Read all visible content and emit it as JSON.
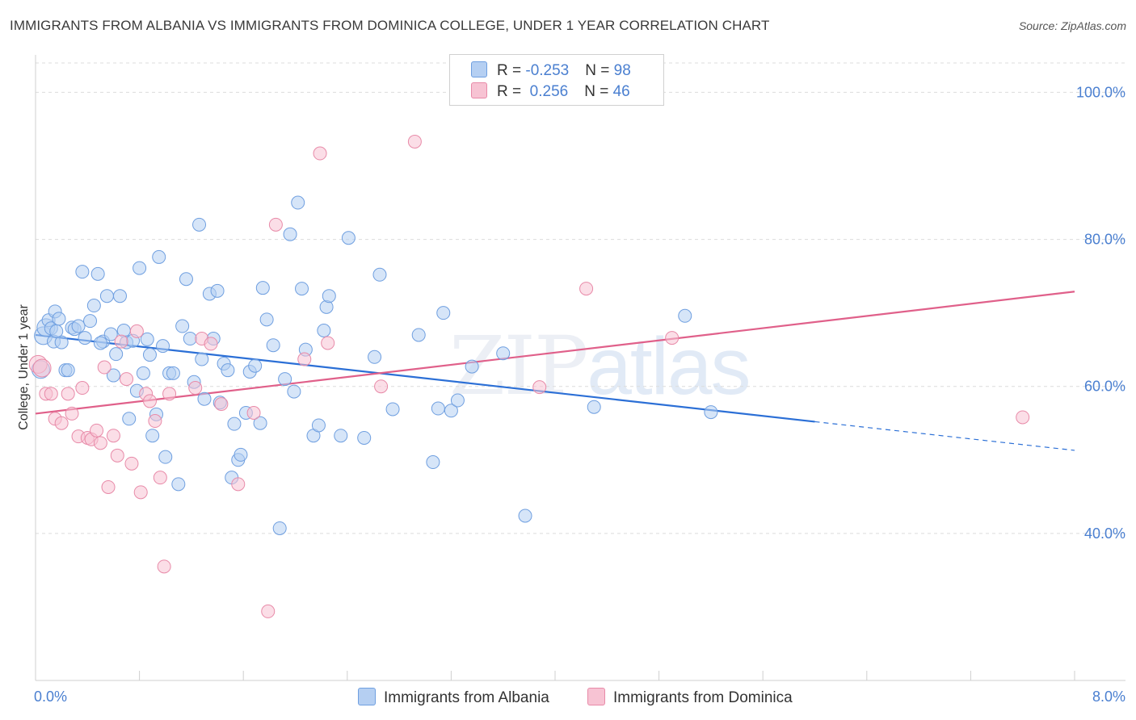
{
  "title": "IMMIGRANTS FROM ALBANIA VS IMMIGRANTS FROM DOMINICA COLLEGE, UNDER 1 YEAR CORRELATION CHART",
  "source": "Source: ZipAtlas.com",
  "watermark": {
    "zip": "ZIP",
    "atlas": "atlas"
  },
  "legend": {
    "rows": [
      {
        "r_label": "R = ",
        "r_value": "-0.253",
        "n_label": "N = ",
        "n_value": "98",
        "color": "#a8c8f0"
      },
      {
        "r_label": "R = ",
        "r_value": " 0.256",
        "n_label": "N = ",
        "n_value": "46",
        "color": "#f5b8cb"
      }
    ]
  },
  "bottom_legend": [
    {
      "label": "Immigrants from Albania",
      "color": "#a8c8f0"
    },
    {
      "label": "Immigrants from Dominica",
      "color": "#f5b8cb"
    }
  ],
  "chart_data": {
    "type": "scatter",
    "title": "IMMIGRANTS FROM ALBANIA VS IMMIGRANTS FROM DOMINICA COLLEGE, UNDER 1 YEAR CORRELATION CHART",
    "xlabel": "",
    "ylabel": "College, Under 1 year",
    "xlim": [
      0,
      8
    ],
    "ylim": [
      20,
      104
    ],
    "x_tick_labels": [
      "0.0%",
      "8.0%"
    ],
    "y_ticks": [
      40,
      60,
      80,
      100
    ],
    "y_tick_labels": [
      "40.0%",
      "60.0%",
      "80.0%",
      "100.0%"
    ],
    "series": [
      {
        "name": "Immigrants from Albania",
        "color": "#6f9fe0",
        "fill": "#b5cff2",
        "trend": {
          "x0": 0.0,
          "y0": 67.0,
          "x1": 6.0,
          "y1": 55.2,
          "dash_to_x": 8.0,
          "dash_to_y": 51.3,
          "color": "#2b6fd6"
        },
        "points": [
          [
            0.06,
            66.9
          ],
          [
            0.08,
            68.0
          ],
          [
            0.1,
            69.0
          ],
          [
            0.12,
            67.9
          ],
          [
            0.14,
            66.1
          ],
          [
            0.15,
            70.2
          ],
          [
            0.18,
            69.2
          ],
          [
            0.2,
            66.0
          ],
          [
            0.23,
            62.2
          ],
          [
            0.25,
            62.2
          ],
          [
            0.28,
            68.0
          ],
          [
            0.3,
            67.8
          ],
          [
            0.33,
            68.2
          ],
          [
            0.36,
            75.6
          ],
          [
            0.38,
            66.6
          ],
          [
            0.42,
            68.9
          ],
          [
            0.45,
            71.0
          ],
          [
            0.48,
            75.3
          ],
          [
            0.52,
            66.1
          ],
          [
            0.55,
            72.3
          ],
          [
            0.58,
            67.1
          ],
          [
            0.6,
            61.5
          ],
          [
            0.62,
            64.4
          ],
          [
            0.65,
            72.3
          ],
          [
            0.68,
            67.6
          ],
          [
            0.7,
            66.0
          ],
          [
            0.72,
            55.6
          ],
          [
            0.75,
            66.2
          ],
          [
            0.78,
            59.4
          ],
          [
            0.8,
            76.1
          ],
          [
            0.83,
            61.8
          ],
          [
            0.86,
            66.4
          ],
          [
            0.88,
            64.3
          ],
          [
            0.9,
            53.3
          ],
          [
            0.93,
            56.2
          ],
          [
            0.95,
            77.6
          ],
          [
            0.98,
            65.5
          ],
          [
            1.0,
            50.4
          ],
          [
            1.03,
            61.8
          ],
          [
            1.06,
            61.8
          ],
          [
            1.1,
            46.7
          ],
          [
            1.13,
            68.2
          ],
          [
            1.16,
            74.6
          ],
          [
            1.19,
            66.5
          ],
          [
            1.22,
            60.6
          ],
          [
            1.26,
            82.0
          ],
          [
            1.28,
            63.7
          ],
          [
            1.3,
            58.3
          ],
          [
            1.34,
            72.6
          ],
          [
            1.37,
            66.5
          ],
          [
            1.4,
            73.0
          ],
          [
            1.42,
            57.8
          ],
          [
            1.45,
            63.1
          ],
          [
            1.48,
            62.2
          ],
          [
            1.51,
            47.6
          ],
          [
            1.53,
            54.9
          ],
          [
            1.56,
            50.0
          ],
          [
            1.58,
            50.7
          ],
          [
            1.62,
            56.4
          ],
          [
            1.65,
            62.0
          ],
          [
            1.69,
            62.8
          ],
          [
            1.73,
            55.0
          ],
          [
            1.75,
            73.4
          ],
          [
            1.78,
            69.1
          ],
          [
            1.83,
            65.6
          ],
          [
            1.88,
            40.7
          ],
          [
            1.92,
            61.0
          ],
          [
            1.96,
            80.7
          ],
          [
            1.99,
            59.3
          ],
          [
            2.02,
            85.0
          ],
          [
            2.05,
            73.3
          ],
          [
            2.08,
            65.0
          ],
          [
            2.14,
            53.3
          ],
          [
            2.18,
            54.7
          ],
          [
            2.22,
            67.6
          ],
          [
            2.24,
            70.8
          ],
          [
            2.26,
            72.3
          ],
          [
            2.35,
            53.3
          ],
          [
            2.41,
            80.2
          ],
          [
            2.53,
            53.0
          ],
          [
            2.61,
            64.0
          ],
          [
            2.65,
            75.2
          ],
          [
            2.75,
            56.9
          ],
          [
            2.95,
            67.0
          ],
          [
            3.06,
            49.7
          ],
          [
            3.1,
            57.0
          ],
          [
            3.14,
            70.0
          ],
          [
            3.2,
            56.7
          ],
          [
            3.25,
            58.1
          ],
          [
            3.36,
            62.7
          ],
          [
            3.6,
            64.5
          ],
          [
            3.77,
            42.4
          ],
          [
            4.3,
            57.2
          ],
          [
            5.0,
            69.6
          ],
          [
            5.2,
            56.5
          ],
          [
            0.04,
            62.3
          ],
          [
            0.16,
            67.5
          ],
          [
            0.5,
            65.9
          ]
        ]
      },
      {
        "name": "Immigrants from Dominica",
        "color": "#e88aa8",
        "fill": "#f7c3d3",
        "trend": {
          "x0": 0.0,
          "y0": 56.3,
          "x1": 8.0,
          "y1": 72.9,
          "color": "#e0608a"
        },
        "points": [
          [
            0.02,
            63.0
          ],
          [
            0.05,
            62.5
          ],
          [
            0.08,
            59.0
          ],
          [
            0.12,
            59.0
          ],
          [
            0.15,
            55.6
          ],
          [
            0.2,
            55.0
          ],
          [
            0.25,
            59.0
          ],
          [
            0.28,
            56.3
          ],
          [
            0.33,
            53.2
          ],
          [
            0.36,
            59.8
          ],
          [
            0.4,
            53.0
          ],
          [
            0.43,
            52.8
          ],
          [
            0.47,
            54.0
          ],
          [
            0.5,
            52.3
          ],
          [
            0.53,
            62.6
          ],
          [
            0.56,
            46.3
          ],
          [
            0.6,
            53.3
          ],
          [
            0.63,
            50.6
          ],
          [
            0.66,
            66.1
          ],
          [
            0.7,
            61.0
          ],
          [
            0.74,
            49.5
          ],
          [
            0.78,
            67.5
          ],
          [
            0.81,
            45.6
          ],
          [
            0.85,
            59.0
          ],
          [
            0.88,
            58.0
          ],
          [
            0.92,
            55.3
          ],
          [
            0.96,
            47.6
          ],
          [
            0.99,
            35.5
          ],
          [
            1.03,
            59.0
          ],
          [
            1.23,
            59.8
          ],
          [
            1.28,
            66.5
          ],
          [
            1.35,
            65.8
          ],
          [
            1.43,
            57.6
          ],
          [
            1.56,
            46.7
          ],
          [
            1.68,
            56.4
          ],
          [
            1.79,
            29.4
          ],
          [
            1.85,
            82.0
          ],
          [
            2.07,
            63.7
          ],
          [
            2.19,
            91.7
          ],
          [
            2.25,
            65.9
          ],
          [
            2.66,
            60.0
          ],
          [
            2.92,
            93.3
          ],
          [
            3.88,
            59.9
          ],
          [
            4.24,
            73.3
          ],
          [
            4.9,
            66.6
          ],
          [
            7.6,
            55.8
          ]
        ]
      }
    ]
  }
}
